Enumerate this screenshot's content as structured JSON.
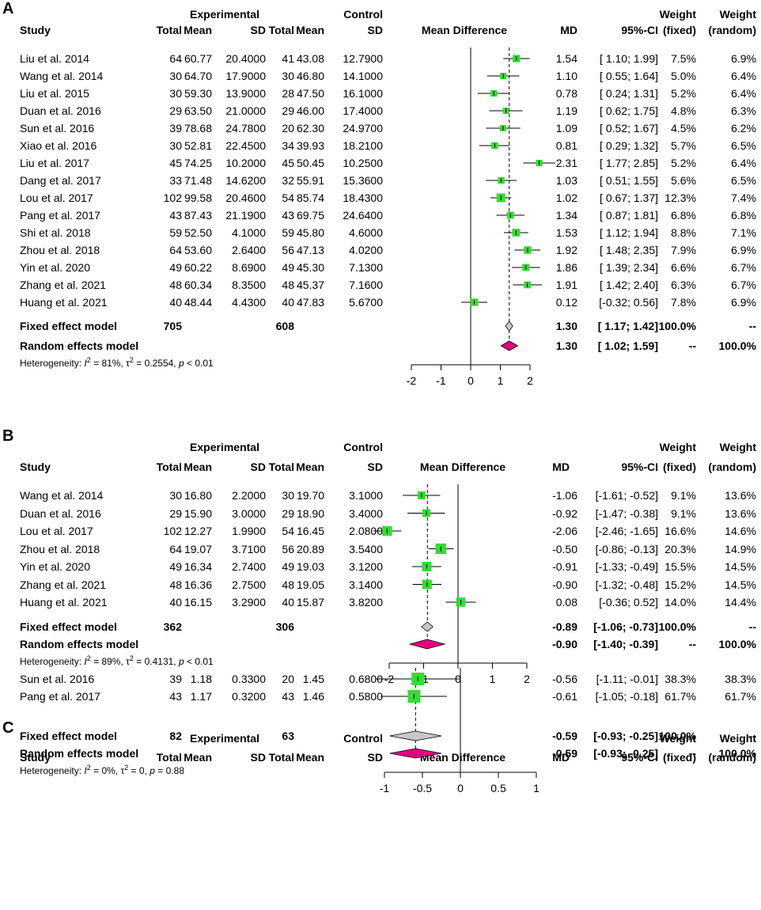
{
  "panels": [
    {
      "letter": "A",
      "headers": {
        "experimental": "Experimental",
        "control": "Control",
        "study": "Study",
        "total_e": "Total",
        "mean_e": "Mean",
        "sd_e": "SD",
        "total_c": "Total",
        "mean_c": "Mean",
        "sd_c": "SD",
        "md_plot": "Mean Difference",
        "md": "MD",
        "ci": "95%-CI",
        "weight": "Weight",
        "fixed": "(fixed)",
        "random": "(random)"
      },
      "studies": [
        {
          "name": "Liu et al. 2014",
          "te": "64",
          "me": "60.77",
          "sde": "20.4000",
          "tc": "41",
          "mc": "43.08",
          "sdc": "12.7900",
          "md_text": "1.54",
          "ci_text": "[ 1.10; 1.99]",
          "wf": "7.5%",
          "wr": "6.9%",
          "md": 1.54,
          "lo": 1.1,
          "hi": 1.99,
          "w": 7.5
        },
        {
          "name": "Wang et al. 2014",
          "te": "30",
          "me": "64.70",
          "sde": "17.9000",
          "tc": "30",
          "mc": "46.80",
          "sdc": "14.1000",
          "md_text": "1.10",
          "ci_text": "[ 0.55; 1.64]",
          "wf": "5.0%",
          "wr": "6.4%",
          "md": 1.1,
          "lo": 0.55,
          "hi": 1.64,
          "w": 5.0
        },
        {
          "name": "Liu et al. 2015",
          "te": "30",
          "me": "59.30",
          "sde": "13.9000",
          "tc": "28",
          "mc": "47.50",
          "sdc": "16.1000",
          "md_text": "0.78",
          "ci_text": "[ 0.24; 1.31]",
          "wf": "5.2%",
          "wr": "6.4%",
          "md": 0.78,
          "lo": 0.24,
          "hi": 1.31,
          "w": 5.2
        },
        {
          "name": "Duan et al. 2016",
          "te": "29",
          "me": "63.50",
          "sde": "21.0000",
          "tc": "29",
          "mc": "46.00",
          "sdc": "17.4000",
          "md_text": "1.19",
          "ci_text": "[ 0.62; 1.75]",
          "wf": "4.8%",
          "wr": "6.3%",
          "md": 1.19,
          "lo": 0.62,
          "hi": 1.75,
          "w": 4.8
        },
        {
          "name": "Sun et al. 2016",
          "te": "39",
          "me": "78.68",
          "sde": "24.7800",
          "tc": "20",
          "mc": "62.30",
          "sdc": "24.9700",
          "md_text": "1.09",
          "ci_text": "[ 0.52; 1.67]",
          "wf": "4.5%",
          "wr": "6.2%",
          "md": 1.09,
          "lo": 0.52,
          "hi": 1.67,
          "w": 4.5
        },
        {
          "name": "Xiao et al. 2016",
          "te": "30",
          "me": "52.81",
          "sde": "22.4500",
          "tc": "34",
          "mc": "39.93",
          "sdc": "18.2100",
          "md_text": "0.81",
          "ci_text": "[ 0.29; 1.32]",
          "wf": "5.7%",
          "wr": "6.5%",
          "md": 0.81,
          "lo": 0.29,
          "hi": 1.32,
          "w": 5.7
        },
        {
          "name": "Liu et al. 2017",
          "te": "45",
          "me": "74.25",
          "sde": "10.2000",
          "tc": "45",
          "mc": "50.45",
          "sdc": "10.2500",
          "md_text": "2.31",
          "ci_text": "[ 1.77; 2.85]",
          "wf": "5.2%",
          "wr": "6.4%",
          "md": 2.31,
          "lo": 1.77,
          "hi": 2.85,
          "w": 5.2
        },
        {
          "name": "Dang et al. 2017",
          "te": "33",
          "me": "71.48",
          "sde": "14.6200",
          "tc": "32",
          "mc": "55.91",
          "sdc": "15.3600",
          "md_text": "1.03",
          "ci_text": "[ 0.51; 1.55]",
          "wf": "5.6%",
          "wr": "6.5%",
          "md": 1.03,
          "lo": 0.51,
          "hi": 1.55,
          "w": 5.6
        },
        {
          "name": "Lou et al. 2017",
          "te": "102",
          "me": "99.58",
          "sde": "20.4600",
          "tc": "54",
          "mc": "85.74",
          "sdc": "18.4300",
          "md_text": "1.02",
          "ci_text": "[ 0.67; 1.37]",
          "wf": "12.3%",
          "wr": "7.4%",
          "md": 1.02,
          "lo": 0.67,
          "hi": 1.37,
          "w": 12.3
        },
        {
          "name": "Pang et al. 2017",
          "te": "43",
          "me": "87.43",
          "sde": "21.1900",
          "tc": "43",
          "mc": "69.75",
          "sdc": "24.6400",
          "md_text": "1.34",
          "ci_text": "[ 0.87; 1.81]",
          "wf": "6.8%",
          "wr": "6.8%",
          "md": 1.34,
          "lo": 0.87,
          "hi": 1.81,
          "w": 6.8
        },
        {
          "name": "Shi et al. 2018",
          "te": "59",
          "me": "52.50",
          "sde": "4.1000",
          "tc": "59",
          "mc": "45.80",
          "sdc": "4.6000",
          "md_text": "1.53",
          "ci_text": "[ 1.12; 1.94]",
          "wf": "8.8%",
          "wr": "7.1%",
          "md": 1.53,
          "lo": 1.12,
          "hi": 1.94,
          "w": 8.8
        },
        {
          "name": "Zhou et al. 2018",
          "te": "64",
          "me": "53.60",
          "sde": "2.6400",
          "tc": "56",
          "mc": "47.13",
          "sdc": "4.0200",
          "md_text": "1.92",
          "ci_text": "[ 1.48; 2.35]",
          "wf": "7.9%",
          "wr": "6.9%",
          "md": 1.92,
          "lo": 1.48,
          "hi": 2.35,
          "w": 7.9
        },
        {
          "name": "Yin et al. 2020",
          "te": "49",
          "me": "60.22",
          "sde": "8.6900",
          "tc": "49",
          "mc": "45.30",
          "sdc": "7.1300",
          "md_text": "1.86",
          "ci_text": "[ 1.39; 2.34]",
          "wf": "6.6%",
          "wr": "6.7%",
          "md": 1.86,
          "lo": 1.39,
          "hi": 2.34,
          "w": 6.6
        },
        {
          "name": "Zhang et al. 2021",
          "te": "48",
          "me": "60.34",
          "sde": "8.3500",
          "tc": "48",
          "mc": "45.37",
          "sdc": "7.1600",
          "md_text": "1.91",
          "ci_text": "[ 1.42; 2.40]",
          "wf": "6.3%",
          "wr": "6.7%",
          "md": 1.91,
          "lo": 1.42,
          "hi": 2.4,
          "w": 6.3
        },
        {
          "name": "Huang et al. 2021",
          "te": "40",
          "me": "48.44",
          "sde": "4.4300",
          "tc": "40",
          "mc": "47.83",
          "sdc": "5.6700",
          "md_text": "0.12",
          "ci_text": "[-0.32; 0.56]",
          "wf": "7.8%",
          "wr": "6.9%",
          "md": 0.12,
          "lo": -0.32,
          "hi": 0.56,
          "w": 7.8
        }
      ],
      "fixed": {
        "label": "Fixed effect model",
        "te": "705",
        "tc": "608",
        "md_text": "1.30",
        "ci_text": "[ 1.17; 1.42]",
        "wf": "100.0%",
        "wr": "--",
        "md": 1.3,
        "lo": 1.17,
        "hi": 1.42
      },
      "random": {
        "label": "Random effects model",
        "md_text": "1.30",
        "ci_text": "[ 1.02; 1.59]",
        "wf": "--",
        "wr": "100.0%",
        "md": 1.3,
        "lo": 1.02,
        "hi": 1.59
      },
      "heterogeneity": {
        "i2": "81%",
        "tau2": "0.2554",
        "p": "< 0.01"
      },
      "axis": {
        "min": -2,
        "max": 2,
        "ticks": [
          -2,
          -1,
          0,
          1,
          2
        ],
        "tick_labels": [
          "-2",
          "-1",
          "0",
          "1",
          "2"
        ]
      }
    },
    {
      "letter": "B",
      "headers": {
        "experimental": "Experimental",
        "control": "Control",
        "study": "Study",
        "total_e": "Total",
        "mean_e": "Mean",
        "sd_e": "SD",
        "total_c": "Total",
        "mean_c": "Mean",
        "sd_c": "SD",
        "md_plot": "Mean Difference",
        "md": "MD",
        "ci": "95%-CI",
        "weight": "Weight",
        "fixed": "(fixed)",
        "random": "(random)"
      },
      "studies": [
        {
          "name": "Wang et al. 2014",
          "te": "30",
          "me": "16.80",
          "sde": "2.2000",
          "tc": "30",
          "mc": "19.70",
          "sdc": "3.1000",
          "md_text": "-1.06",
          "ci_text": "[-1.61; -0.52]",
          "wf": "9.1%",
          "wr": "13.6%",
          "md": -1.06,
          "lo": -1.61,
          "hi": -0.52,
          "w": 9.1
        },
        {
          "name": "Duan et al. 2016",
          "te": "29",
          "me": "15.90",
          "sde": "3.0000",
          "tc": "29",
          "mc": "18.90",
          "sdc": "3.4000",
          "md_text": "-0.92",
          "ci_text": "[-1.47; -0.38]",
          "wf": "9.1%",
          "wr": "13.6%",
          "md": -0.92,
          "lo": -1.47,
          "hi": -0.38,
          "w": 9.1
        },
        {
          "name": "Lou et al. 2017",
          "te": "102",
          "me": "12.27",
          "sde": "1.9900",
          "tc": "54",
          "mc": "16.45",
          "sdc": "2.0800",
          "md_text": "-2.06",
          "ci_text": "[-2.46; -1.65]",
          "wf": "16.6%",
          "wr": "14.6%",
          "md": -2.06,
          "lo": -2.46,
          "hi": -1.65,
          "w": 16.6
        },
        {
          "name": "Zhou et al. 2018",
          "te": "64",
          "me": "19.07",
          "sde": "3.7100",
          "tc": "56",
          "mc": "20.89",
          "sdc": "3.5400",
          "md_text": "-0.50",
          "ci_text": "[-0.86; -0.13]",
          "wf": "20.3%",
          "wr": "14.9%",
          "md": -0.5,
          "lo": -0.86,
          "hi": -0.13,
          "w": 20.3
        },
        {
          "name": "Yin et al. 2020",
          "te": "49",
          "me": "16.34",
          "sde": "2.7400",
          "tc": "49",
          "mc": "19.03",
          "sdc": "3.1200",
          "md_text": "-0.91",
          "ci_text": "[-1.33; -0.49]",
          "wf": "15.5%",
          "wr": "14.5%",
          "md": -0.91,
          "lo": -1.33,
          "hi": -0.49,
          "w": 15.5
        },
        {
          "name": "Zhang et al. 2021",
          "te": "48",
          "me": "16.36",
          "sde": "2.7500",
          "tc": "48",
          "mc": "19.05",
          "sdc": "3.1400",
          "md_text": "-0.90",
          "ci_text": "[-1.32; -0.48]",
          "wf": "15.2%",
          "wr": "14.5%",
          "md": -0.9,
          "lo": -1.32,
          "hi": -0.48,
          "w": 15.2
        },
        {
          "name": "Huang et al. 2021",
          "te": "40",
          "me": "16.15",
          "sde": "3.2900",
          "tc": "40",
          "mc": "15.87",
          "sdc": "3.8200",
          "md_text": "0.08",
          "ci_text": "[-0.36; 0.52]",
          "wf": "14.0%",
          "wr": "14.4%",
          "md": 0.08,
          "lo": -0.36,
          "hi": 0.52,
          "w": 14.0
        }
      ],
      "fixed": {
        "label": "Fixed effect model",
        "te": "362",
        "tc": "306",
        "md_text": "-0.89",
        "ci_text": "[-1.06; -0.73]",
        "wf": "100.0%",
        "wr": "--",
        "md": -0.89,
        "lo": -1.06,
        "hi": -0.73
      },
      "random": {
        "label": "Random effects model",
        "md_text": "-0.90",
        "ci_text": "[-1.40; -0.39]",
        "wf": "--",
        "wr": "100.0%",
        "md": -0.9,
        "lo": -1.4,
        "hi": -0.39
      },
      "heterogeneity": {
        "i2": "89%",
        "tau2": "0.4131",
        "p": "< 0.01"
      },
      "axis": {
        "min": -2,
        "max": 2,
        "ticks": [
          -2,
          -1,
          0,
          1,
          2
        ],
        "tick_labels": [
          "-2",
          "-1",
          "0",
          "1",
          "2"
        ]
      }
    },
    {
      "letter": "C",
      "headers": {
        "experimental": "Experimental",
        "control": "Control",
        "study": "Study",
        "total_e": "Total",
        "mean_e": "Mean",
        "sd_e": "SD",
        "total_c": "Total",
        "mean_c": "Mean",
        "sd_c": "SD",
        "md_plot": "Mean Difference",
        "md": "MD",
        "ci": "95%-CI",
        "weight": "Weight",
        "fixed": "(fixed)",
        "random": "(random)"
      },
      "studies": [
        {
          "name": "Sun et al. 2016",
          "te": "39",
          "me": "1.18",
          "sde": "0.3300",
          "tc": "20",
          "mc": "1.45",
          "sdc": "0.6800",
          "md_text": "-0.56",
          "ci_text": "[-1.11; -0.01]",
          "wf": "38.3%",
          "wr": "38.3%",
          "md": -0.56,
          "lo": -1.11,
          "hi": -0.01,
          "w": 38.3
        },
        {
          "name": "Pang et al. 2017",
          "te": "43",
          "me": "1.17",
          "sde": "0.3200",
          "tc": "43",
          "mc": "1.46",
          "sdc": "0.5800",
          "md_text": "-0.61",
          "ci_text": "[-1.05; -0.18]",
          "wf": "61.7%",
          "wr": "61.7%",
          "md": -0.61,
          "lo": -1.05,
          "hi": -0.18,
          "w": 61.7
        }
      ],
      "fixed": {
        "label": "Fixed effect model",
        "te": "82",
        "tc": "63",
        "md_text": "-0.59",
        "ci_text": "[-0.93; -0.25]",
        "wf": "100.0%",
        "wr": "--",
        "md": -0.59,
        "lo": -0.93,
        "hi": -0.25
      },
      "random": {
        "label": "Random effects model",
        "md_text": "-0.59",
        "ci_text": "[-0.93; -0.25]",
        "wf": "--",
        "wr": "100.0%",
        "md": -0.59,
        "lo": -0.93,
        "hi": -0.25
      },
      "heterogeneity": {
        "i2": "0%",
        "tau2": "0",
        "p": "= 0.88"
      },
      "axis": {
        "min": -1,
        "max": 1,
        "ticks": [
          -1,
          -0.5,
          0,
          0.5,
          1
        ],
        "tick_labels": [
          "-1",
          "-0.5",
          "0",
          "0.5",
          "1"
        ]
      }
    }
  ],
  "colors": {
    "square": "#33dd33",
    "fixed_diamond": "#c8c8c8",
    "random_diamond": "#e5007e",
    "line": "#000000"
  },
  "chart_data": [
    {
      "type": "forest",
      "panel": "A",
      "title": "",
      "xlabel": "Mean Difference",
      "xlim": [
        -2,
        2
      ],
      "studies": [
        "Liu et al. 2014",
        "Wang et al. 2014",
        "Liu et al. 2015",
        "Duan et al. 2016",
        "Sun et al. 2016",
        "Xiao et al. 2016",
        "Liu et al. 2017",
        "Dang et al. 2017",
        "Lou et al. 2017",
        "Pang et al. 2017",
        "Shi et al. 2018",
        "Zhou et al. 2018",
        "Yin et al. 2020",
        "Zhang et al. 2021",
        "Huang et al. 2021"
      ],
      "md": [
        1.54,
        1.1,
        0.78,
        1.19,
        1.09,
        0.81,
        2.31,
        1.03,
        1.02,
        1.34,
        1.53,
        1.92,
        1.86,
        1.91,
        0.12
      ],
      "fixed": {
        "md": 1.3,
        "ci": [
          1.17,
          1.42
        ]
      },
      "random": {
        "md": 1.3,
        "ci": [
          1.02,
          1.59
        ]
      }
    },
    {
      "type": "forest",
      "panel": "B",
      "title": "",
      "xlabel": "Mean Difference",
      "xlim": [
        -2,
        2
      ],
      "studies": [
        "Wang et al. 2014",
        "Duan et al. 2016",
        "Lou et al. 2017",
        "Zhou et al. 2018",
        "Yin et al. 2020",
        "Zhang et al. 2021",
        "Huang et al. 2021"
      ],
      "md": [
        -1.06,
        -0.92,
        -2.06,
        -0.5,
        -0.91,
        -0.9,
        0.08
      ],
      "fixed": {
        "md": -0.89,
        "ci": [
          -1.06,
          -0.73
        ]
      },
      "random": {
        "md": -0.9,
        "ci": [
          -1.4,
          -0.39
        ]
      }
    },
    {
      "type": "forest",
      "panel": "C",
      "title": "",
      "xlabel": "Mean Difference",
      "xlim": [
        -1,
        1
      ],
      "studies": [
        "Sun et al. 2016",
        "Pang et al. 2017"
      ],
      "md": [
        -0.56,
        -0.61
      ],
      "fixed": {
        "md": -0.59,
        "ci": [
          -0.93,
          -0.25
        ]
      },
      "random": {
        "md": -0.59,
        "ci": [
          -0.93,
          -0.25
        ]
      }
    }
  ]
}
